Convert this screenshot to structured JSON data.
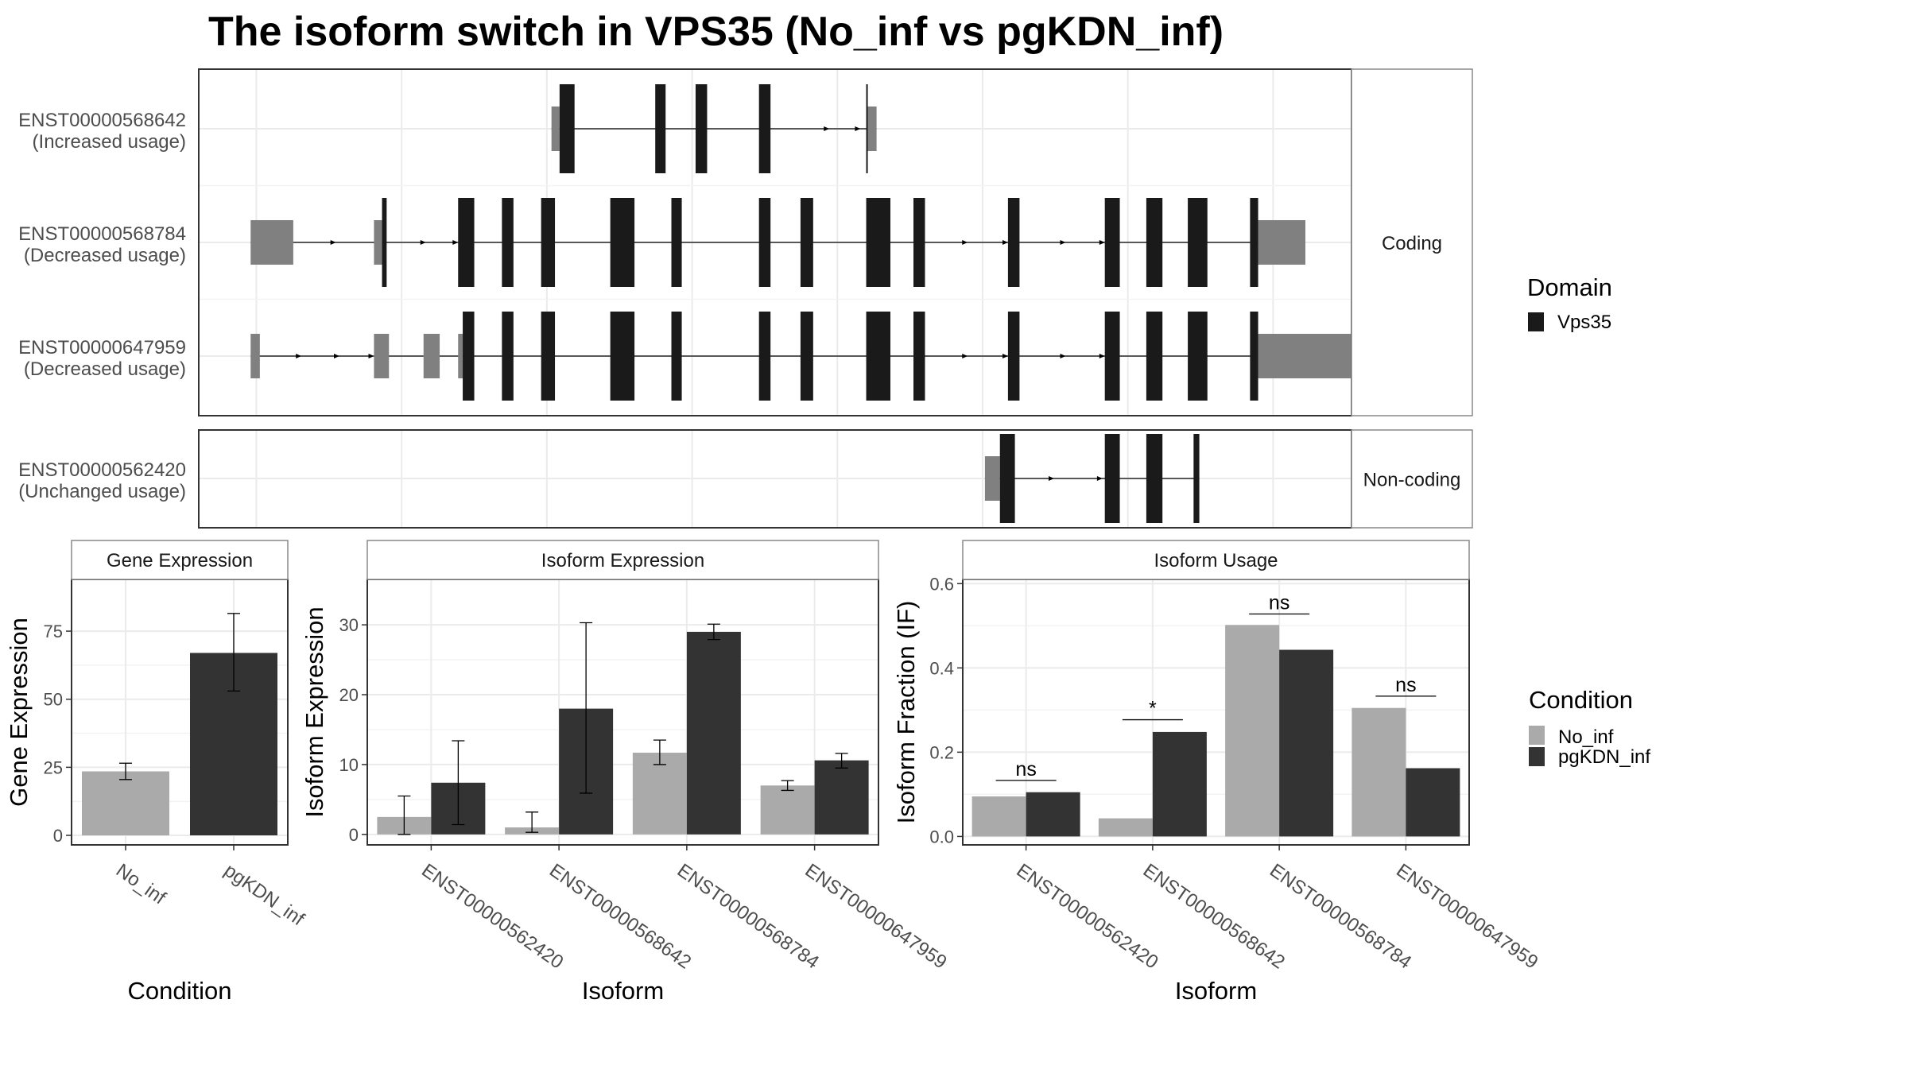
{
  "title": "The isoform switch in VPS35 (No_inf vs pgKDN_inf)",
  "colors": {
    "no_inf": "#aaaaaa",
    "pgkdn_inf": "#333333",
    "domain": "#1a1a1a",
    "utr": "#808080",
    "grid": "#ebebeb",
    "panel_border": "#333333",
    "strip_border": "#888888"
  },
  "structure": {
    "x_range": [
      0,
      100
    ],
    "groups": [
      {
        "label": "Coding",
        "transcripts": [
          {
            "id": "ENST00000568642",
            "usage": "(Increased usage)",
            "utr": [
              [
                30.6,
                31.3
              ],
              [
                58.0,
                58.8
              ]
            ],
            "cds": [
              [
                31.3,
                32.6
              ],
              [
                39.6,
                40.5
              ],
              [
                43.1,
                44.1
              ],
              [
                48.6,
                49.6
              ],
              [
                57.9,
                58.0
              ]
            ],
            "arrows": [
              54.5,
              57.2
            ]
          },
          {
            "id": "ENST00000568784",
            "usage": "(Decreased usage)",
            "utr": [
              [
                4.5,
                8.2
              ],
              [
                15.2,
                15.9
              ],
              [
                91.9,
                96.0
              ]
            ],
            "cds": [
              [
                15.9,
                16.3
              ],
              [
                22.5,
                23.9
              ],
              [
                26.3,
                27.3
              ],
              [
                29.7,
                30.9
              ],
              [
                35.7,
                37.8
              ],
              [
                41.0,
                41.9
              ],
              [
                48.6,
                49.6
              ],
              [
                52.2,
                53.3
              ],
              [
                57.9,
                60.0
              ],
              [
                62.0,
                63.0
              ],
              [
                70.2,
                71.2
              ],
              [
                78.6,
                79.9
              ],
              [
                82.2,
                83.6
              ],
              [
                85.8,
                87.5
              ],
              [
                91.2,
                91.9
              ]
            ],
            "arrows": [
              11.7,
              19.5,
              22.3,
              66.5,
              70.0,
              75.0,
              78.4
            ]
          },
          {
            "id": "ENST00000647959",
            "usage": "(Decreased usage)",
            "utr": [
              [
                4.5,
                5.3
              ],
              [
                15.2,
                16.5
              ],
              [
                19.5,
                20.9
              ],
              [
                22.5,
                22.9
              ],
              [
                91.9,
                100.0
              ]
            ],
            "cds": [
              [
                22.9,
                23.9
              ],
              [
                26.3,
                27.3
              ],
              [
                29.7,
                30.9
              ],
              [
                35.7,
                37.8
              ],
              [
                41.0,
                41.9
              ],
              [
                48.6,
                49.6
              ],
              [
                52.2,
                53.3
              ],
              [
                57.9,
                60.0
              ],
              [
                62.0,
                63.0
              ],
              [
                70.2,
                71.2
              ],
              [
                78.6,
                79.9
              ],
              [
                82.2,
                83.6
              ],
              [
                85.8,
                87.5
              ],
              [
                91.2,
                91.9
              ]
            ],
            "arrows": [
              8.7,
              12.0,
              15.0,
              66.5,
              70.0,
              75.0,
              78.4
            ]
          }
        ]
      },
      {
        "label": "Non-coding",
        "transcripts": [
          {
            "id": "ENST00000562420",
            "usage": "(Unchanged usage)",
            "utr": [
              [
                68.2,
                69.5
              ]
            ],
            "cds": [
              [
                69.5,
                70.8
              ],
              [
                78.6,
                79.9
              ],
              [
                82.2,
                83.6
              ],
              [
                86.3,
                86.8
              ]
            ],
            "arrows": [
              74.0,
              78.2
            ]
          }
        ]
      }
    ]
  },
  "legend_domain": {
    "title": "Domain",
    "items": [
      {
        "label": "Vps35"
      }
    ]
  },
  "legend_condition": {
    "title": "Condition",
    "items": [
      {
        "label": "No_inf"
      },
      {
        "label": "pgKDN_inf"
      }
    ]
  },
  "chart_data": [
    {
      "type": "bar",
      "strip": "Gene Expression",
      "xlabel": "Condition",
      "ylabel": "Gene Expression",
      "categories": [
        "No_inf",
        "pgKDN_inf"
      ],
      "values": [
        23.5,
        67.0
      ],
      "errors": [
        [
          20.5,
          26.5
        ],
        [
          53.0,
          81.5
        ]
      ],
      "ylim": [
        -3.5,
        94
      ],
      "yticks": [
        0,
        25,
        50,
        75
      ],
      "ytick_labels": [
        "0",
        "25",
        "50",
        "75"
      ]
    },
    {
      "type": "bar",
      "strip": "Isoform Expression",
      "xlabel": "Isoform",
      "ylabel": "Isoform Expression",
      "categories": [
        "ENST00000562420",
        "ENST00000568642",
        "ENST00000568784",
        "ENST00000647959"
      ],
      "series": [
        {
          "name": "No_inf",
          "values": [
            2.5,
            1.0,
            11.7,
            7.0
          ],
          "errors": [
            [
              0.0,
              5.5
            ],
            [
              0.3,
              3.2
            ],
            [
              10.0,
              13.5
            ],
            [
              6.3,
              7.7
            ]
          ]
        },
        {
          "name": "pgKDN_inf",
          "values": [
            7.4,
            18.0,
            29.0,
            10.6
          ],
          "errors": [
            [
              1.4,
              13.4
            ],
            [
              5.9,
              30.3
            ],
            [
              27.9,
              30.1
            ],
            [
              9.5,
              11.6
            ]
          ]
        }
      ],
      "ylim": [
        -1.5,
        36.5
      ],
      "yticks": [
        0,
        10,
        20,
        30
      ],
      "ytick_labels": [
        "0",
        "10",
        "20",
        "30"
      ]
    },
    {
      "type": "bar",
      "strip": "Isoform Usage",
      "xlabel": "Isoform",
      "ylabel": "Isoform Fraction (IF)",
      "categories": [
        "ENST00000562420",
        "ENST00000568642",
        "ENST00000568784",
        "ENST00000647959"
      ],
      "series": [
        {
          "name": "No_inf",
          "values": [
            0.095,
            0.043,
            0.502,
            0.305
          ]
        },
        {
          "name": "pgKDN_inf",
          "values": [
            0.105,
            0.248,
            0.443,
            0.162
          ]
        }
      ],
      "significance": [
        {
          "label": "ns",
          "y": 0.133
        },
        {
          "label": "*",
          "y": 0.277
        },
        {
          "label": "ns",
          "y": 0.528
        },
        {
          "label": "ns",
          "y": 0.333
        }
      ],
      "ylim": [
        -0.02,
        0.61
      ],
      "yticks": [
        0.0,
        0.2,
        0.4,
        0.6
      ],
      "ytick_labels": [
        "0.0",
        "0.2",
        "0.4",
        "0.6"
      ]
    }
  ]
}
